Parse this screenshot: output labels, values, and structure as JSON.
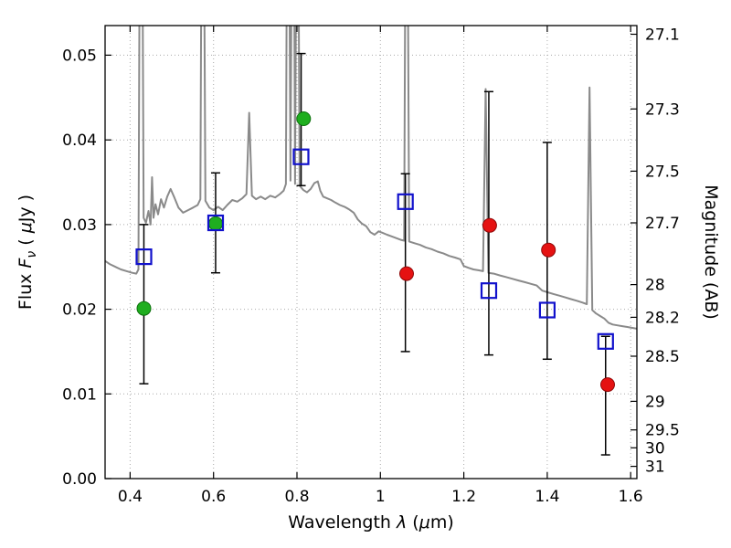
{
  "figure": {
    "background": "#ffffff",
    "frame_color": "#000000"
  },
  "chart_data": {
    "type": "line+scatter",
    "title": "",
    "xlabel_parts": [
      {
        "t": "Wavelength  ",
        "i": 0
      },
      {
        "t": "λ",
        "i": 1
      },
      {
        "t": " (",
        "i": 0
      },
      {
        "t": "μ",
        "i": 1
      },
      {
        "t": "m)",
        "i": 0
      }
    ],
    "ylabel_parts": [
      {
        "t": "Flux  ",
        "i": 0
      },
      {
        "t": "F",
        "i": 1
      },
      {
        "t": "ν",
        "i": 1,
        "s": 1
      },
      {
        "t": "  ( ",
        "i": 0
      },
      {
        "t": "μ",
        "i": 1
      },
      {
        "t": "Jy )",
        "i": 0
      }
    ],
    "y2label": "Magnitude (AB)",
    "xlim": [
      0.34,
      1.615
    ],
    "ylim": [
      0,
      0.0535
    ],
    "grid": {
      "on": true,
      "style": "dotted",
      "color": "#aaaaaa"
    },
    "legend": "none",
    "xticks": {
      "values": [
        0.4,
        0.6,
        0.8,
        1.0,
        1.2,
        1.4,
        1.6
      ],
      "labels": [
        "0.4",
        "0.6",
        "0.8",
        "1",
        "1.2",
        "1.4",
        "1.6"
      ]
    },
    "yticks": {
      "values": [
        0,
        0.01,
        0.02,
        0.03,
        0.04,
        0.05
      ],
      "labels": [
        "0.00",
        "0.01",
        "0.02",
        "0.03",
        "0.04",
        "0.05"
      ]
    },
    "y2ticks": [
      {
        "label": "27.1",
        "flux": 0.05248
      },
      {
        "label": "27.3",
        "flux": 0.04365
      },
      {
        "label": "27.5",
        "flux": 0.03631
      },
      {
        "label": "27.7",
        "flux": 0.0302
      },
      {
        "label": "28",
        "flux": 0.02291
      },
      {
        "label": "28.2",
        "flux": 0.01905
      },
      {
        "label": "28.5",
        "flux": 0.01445
      },
      {
        "label": "29",
        "flux": 0.00912
      },
      {
        "label": "29.5",
        "flux": 0.00575
      },
      {
        "label": "30",
        "flux": 0.00363
      },
      {
        "label": "31",
        "flux": 0.00145
      }
    ],
    "spectrum": {
      "name": "model-spectrum",
      "color": "#8a8a8a",
      "width": 2,
      "points": [
        [
          0.34,
          0.0257
        ],
        [
          0.352,
          0.0253
        ],
        [
          0.365,
          0.025
        ],
        [
          0.378,
          0.0247
        ],
        [
          0.392,
          0.0245
        ],
        [
          0.405,
          0.0243
        ],
        [
          0.415,
          0.0242
        ],
        [
          0.42,
          0.0247
        ],
        [
          0.4235,
          0.07
        ],
        [
          0.429,
          0.07
        ],
        [
          0.4325,
          0.0308
        ],
        [
          0.438,
          0.0302
        ],
        [
          0.444,
          0.0316
        ],
        [
          0.449,
          0.03
        ],
        [
          0.4525,
          0.0356
        ],
        [
          0.456,
          0.0308
        ],
        [
          0.461,
          0.0324
        ],
        [
          0.467,
          0.0312
        ],
        [
          0.474,
          0.033
        ],
        [
          0.481,
          0.032
        ],
        [
          0.489,
          0.0333
        ],
        [
          0.497,
          0.0342
        ],
        [
          0.506,
          0.0332
        ],
        [
          0.516,
          0.032
        ],
        [
          0.527,
          0.0314
        ],
        [
          0.539,
          0.0317
        ],
        [
          0.551,
          0.032
        ],
        [
          0.562,
          0.0323
        ],
        [
          0.5685,
          0.033
        ],
        [
          0.5715,
          0.07
        ],
        [
          0.5765,
          0.07
        ],
        [
          0.5805,
          0.0328
        ],
        [
          0.59,
          0.032
        ],
        [
          0.6,
          0.0317
        ],
        [
          0.611,
          0.0321
        ],
        [
          0.622,
          0.0317
        ],
        [
          0.633,
          0.0323
        ],
        [
          0.645,
          0.0329
        ],
        [
          0.657,
          0.0327
        ],
        [
          0.669,
          0.0331
        ],
        [
          0.679,
          0.0336
        ],
        [
          0.6855,
          0.0432
        ],
        [
          0.692,
          0.0334
        ],
        [
          0.702,
          0.033
        ],
        [
          0.713,
          0.0333
        ],
        [
          0.724,
          0.033
        ],
        [
          0.736,
          0.0334
        ],
        [
          0.748,
          0.0332
        ],
        [
          0.759,
          0.0336
        ],
        [
          0.768,
          0.034
        ],
        [
          0.7735,
          0.0348
        ],
        [
          0.7765,
          0.07
        ],
        [
          0.781,
          0.07
        ],
        [
          0.7845,
          0.0352
        ],
        [
          0.788,
          0.07
        ],
        [
          0.7925,
          0.07
        ],
        [
          0.7955,
          0.0348
        ],
        [
          0.799,
          0.07
        ],
        [
          0.803,
          0.07
        ],
        [
          0.8065,
          0.0346
        ],
        [
          0.815,
          0.0341
        ],
        [
          0.824,
          0.0338
        ],
        [
          0.833,
          0.0342
        ],
        [
          0.842,
          0.0349
        ],
        [
          0.85,
          0.0351
        ],
        [
          0.856,
          0.034
        ],
        [
          0.863,
          0.0333
        ],
        [
          0.872,
          0.0331
        ],
        [
          0.882,
          0.0329
        ],
        [
          0.892,
          0.0326
        ],
        [
          0.903,
          0.0323
        ],
        [
          0.914,
          0.0321
        ],
        [
          0.925,
          0.0318
        ],
        [
          0.936,
          0.0314
        ],
        [
          0.946,
          0.0306
        ],
        [
          0.956,
          0.0301
        ],
        [
          0.966,
          0.0298
        ],
        [
          0.976,
          0.0291
        ],
        [
          0.986,
          0.0288
        ],
        [
          0.996,
          0.0292
        ],
        [
          1.006,
          0.029
        ],
        [
          1.016,
          0.0288
        ],
        [
          1.027,
          0.0286
        ],
        [
          1.038,
          0.0284
        ],
        [
          1.049,
          0.0282
        ],
        [
          1.057,
          0.0281
        ],
        [
          1.0605,
          0.07
        ],
        [
          1.065,
          0.07
        ],
        [
          1.069,
          0.028
        ],
        [
          1.082,
          0.0278
        ],
        [
          1.095,
          0.0276
        ],
        [
          1.109,
          0.0273
        ],
        [
          1.123,
          0.0271
        ],
        [
          1.137,
          0.0268
        ],
        [
          1.151,
          0.0266
        ],
        [
          1.165,
          0.0263
        ],
        [
          1.179,
          0.0261
        ],
        [
          1.192,
          0.0259
        ],
        [
          1.2,
          0.0251
        ],
        [
          1.211,
          0.0249
        ],
        [
          1.223,
          0.0247
        ],
        [
          1.235,
          0.0246
        ],
        [
          1.246,
          0.0245
        ],
        [
          1.2525,
          0.046
        ],
        [
          1.259,
          0.0243
        ],
        [
          1.272,
          0.0242
        ],
        [
          1.286,
          0.024
        ],
        [
          1.301,
          0.0238
        ],
        [
          1.316,
          0.0236
        ],
        [
          1.331,
          0.0234
        ],
        [
          1.346,
          0.0232
        ],
        [
          1.361,
          0.023
        ],
        [
          1.375,
          0.0228
        ],
        [
          1.388,
          0.0222
        ],
        [
          1.401,
          0.022
        ],
        [
          1.415,
          0.0218
        ],
        [
          1.429,
          0.0216
        ],
        [
          1.443,
          0.0214
        ],
        [
          1.457,
          0.0212
        ],
        [
          1.471,
          0.021
        ],
        [
          1.484,
          0.0208
        ],
        [
          1.495,
          0.0206
        ],
        [
          1.5015,
          0.0462
        ],
        [
          1.508,
          0.0199
        ],
        [
          1.517,
          0.0195
        ],
        [
          1.527,
          0.0192
        ],
        [
          1.537,
          0.0189
        ],
        [
          1.547,
          0.0184
        ],
        [
          1.557,
          0.0182
        ],
        [
          1.568,
          0.0181
        ],
        [
          1.58,
          0.018
        ],
        [
          1.592,
          0.0179
        ],
        [
          1.604,
          0.0178
        ],
        [
          1.615,
          0.0177
        ]
      ]
    },
    "series": [
      {
        "name": "observed-photometry-squares",
        "marker": "open-square",
        "color": "#1111cc",
        "edge_width": 2.2,
        "size": 16,
        "errorbar_color": "#000000",
        "points": [
          {
            "x": 0.433,
            "y": 0.0262,
            "ylo": 0.0112,
            "yhi": 0.03
          },
          {
            "x": 0.605,
            "y": 0.0302,
            "ylo": 0.0243,
            "yhi": 0.0361
          },
          {
            "x": 0.81,
            "y": 0.038,
            "ylo": 0.0346,
            "yhi": 0.0502
          },
          {
            "x": 1.06,
            "y": 0.0327,
            "ylo": 0.015,
            "yhi": 0.036
          },
          {
            "x": 1.26,
            "y": 0.0222,
            "ylo": 0.0146,
            "yhi": 0.0457
          },
          {
            "x": 1.4,
            "y": 0.0199,
            "ylo": 0.0141,
            "yhi": 0.0397
          },
          {
            "x": 1.54,
            "y": 0.0162,
            "ylo": 0.0028,
            "yhi": 0.0168
          }
        ]
      },
      {
        "name": "model-photometry-green-circles",
        "marker": "circle",
        "color": "#1fae1f",
        "edge_color": "#0c700c",
        "size": 15,
        "points": [
          {
            "x": 0.433,
            "y": 0.0201
          },
          {
            "x": 0.605,
            "y": 0.0301
          },
          {
            "x": 0.816,
            "y": 0.0425
          }
        ]
      },
      {
        "name": "model-photometry-red-circles",
        "marker": "circle",
        "color": "#e51212",
        "edge_color": "#8f0808",
        "size": 15,
        "points": [
          {
            "x": 1.063,
            "y": 0.0242
          },
          {
            "x": 1.262,
            "y": 0.0299
          },
          {
            "x": 1.403,
            "y": 0.027
          },
          {
            "x": 1.545,
            "y": 0.0111
          }
        ]
      }
    ]
  }
}
